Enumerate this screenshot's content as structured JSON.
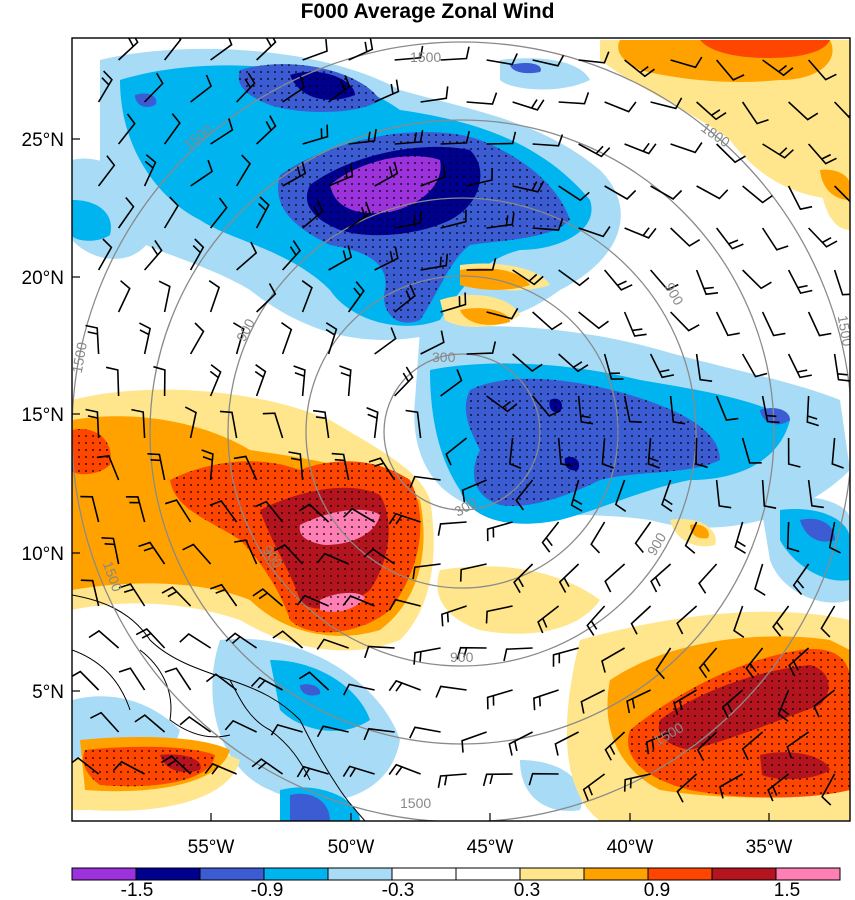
{
  "title": "F000 Average Zonal Wind",
  "map": {
    "lat_labels": [
      "25°N",
      "20°N",
      "15°N",
      "10°N",
      "5°N"
    ],
    "lon_labels": [
      "55°W",
      "50°W",
      "45°W",
      "40°W",
      "35°W"
    ],
    "range_rings": [
      "300",
      "900",
      "1500",
      "1800"
    ],
    "ring_label_set": [
      "1500",
      "1500",
      "1800",
      "1500",
      "900",
      "900",
      "900",
      "1500",
      "300",
      "300",
      "900",
      "900",
      "1500",
      "1500",
      "1500"
    ]
  },
  "colorbar": {
    "labels": [
      "-1.5",
      "-0.9",
      "-0.3",
      "0.3",
      "0.9",
      "1.5"
    ],
    "colors": [
      "#9c32dc",
      "#00008f",
      "#3c5cd4",
      "#00b4f0",
      "#a8dcf6",
      "#ffffff",
      "#ffffff",
      "#ffe68c",
      "#ffa200",
      "#ff4600",
      "#b4141e",
      "#ff7fb4"
    ]
  },
  "palette": {
    "purple": "#9c32dc",
    "navy": "#00008f",
    "blue": "#3c5cd4",
    "cyan": "#00b4f0",
    "lightblue": "#a8dcf6",
    "yellow": "#ffe68c",
    "orange": "#ffa200",
    "red": "#ff4600",
    "darkred": "#b4141e",
    "pink": "#ff7fb4"
  }
}
